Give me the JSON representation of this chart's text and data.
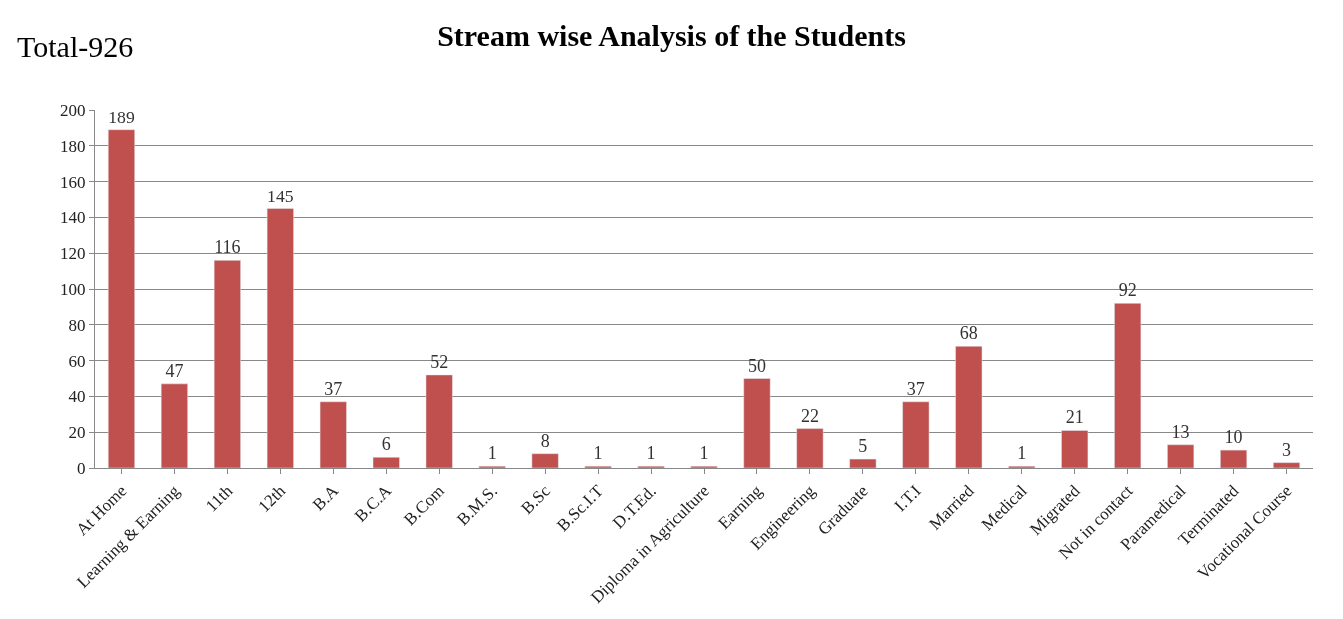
{
  "chart_data": {
    "type": "bar",
    "title": "Stream wise Analysis of the Students",
    "annotations": [
      "Total-926"
    ],
    "categories": [
      "At Home",
      "Learning & Earning",
      "11th",
      "12th",
      "B.A",
      "B.C.A",
      "B.Com",
      "B.M.S.",
      "B.Sc",
      "B.Sc.I.T",
      "D.T.Ed.",
      "Diploma in Agriculture",
      "Earning",
      "Engineering",
      "Graduate",
      "I.T.I",
      "Married",
      "Medical",
      "Migrated",
      "Not in contact",
      "Paramedical",
      "Terminated",
      "Vocational Course"
    ],
    "values": [
      189,
      47,
      116,
      145,
      37,
      6,
      52,
      1,
      8,
      1,
      1,
      1,
      50,
      22,
      5,
      37,
      68,
      1,
      21,
      92,
      13,
      10,
      3
    ],
    "color": "#c0504d",
    "ylim": [
      0,
      200
    ],
    "yticks": [
      0,
      20,
      40,
      60,
      80,
      100,
      120,
      140,
      160,
      180,
      200
    ],
    "grid": "y",
    "legend": false,
    "data_labels": true
  }
}
